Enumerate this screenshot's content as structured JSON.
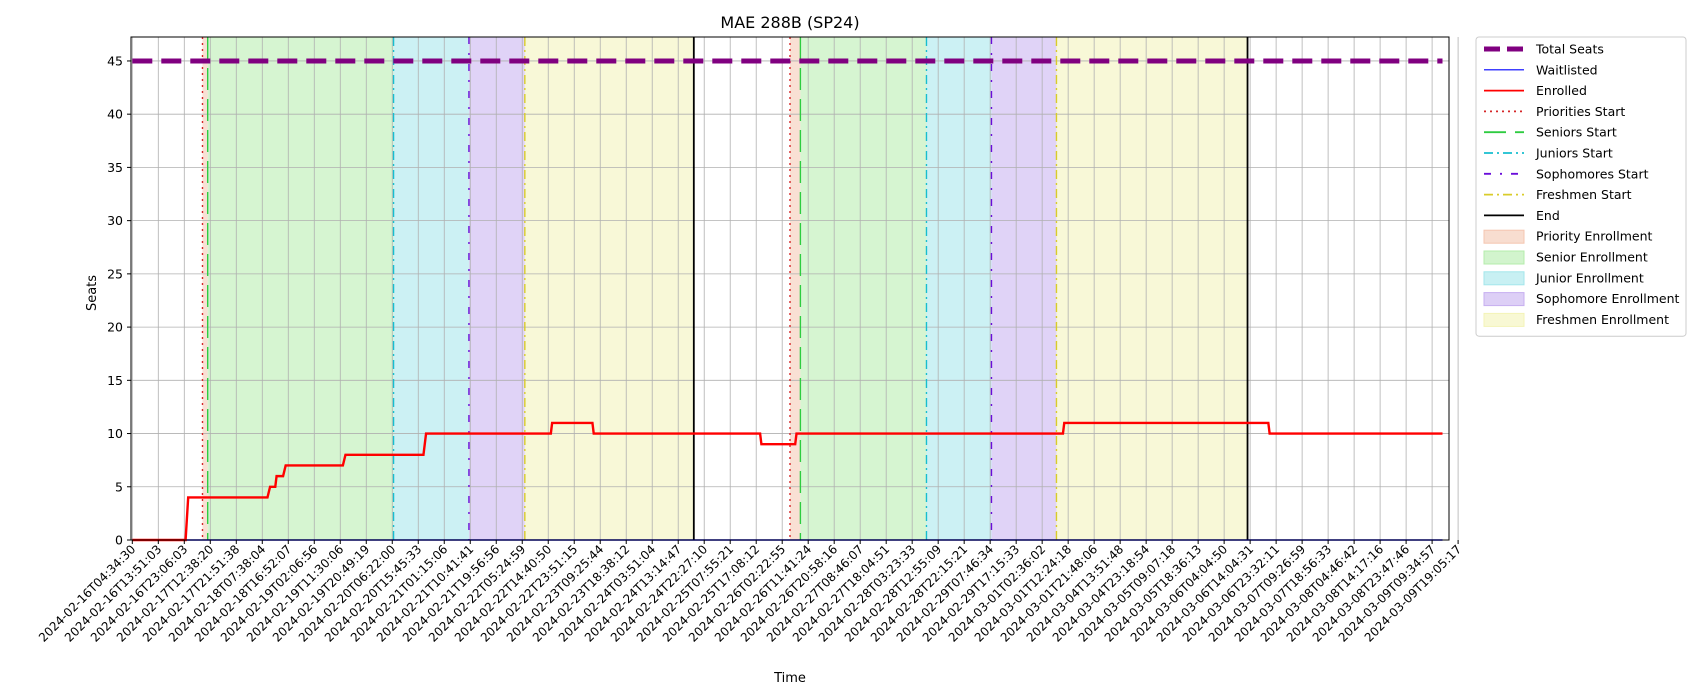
{
  "chart_data": {
    "type": "line",
    "title": "MAE 288B (SP24)",
    "xlabel": "Time",
    "ylabel": "Seats",
    "ylim": [
      0,
      47.25
    ],
    "yticks": [
      0,
      5,
      10,
      15,
      20,
      25,
      30,
      35,
      40,
      45
    ],
    "x_tick_labels": [
      "2024-02-16T04:34:30",
      "2024-02-16T13:51:03",
      "2024-02-16T23:06:03",
      "2024-02-17T12:38:20",
      "2024-02-17T21:51:38",
      "2024-02-18T07:38:04",
      "2024-02-18T16:52:07",
      "2024-02-19T02:06:56",
      "2024-02-19T11:30:06",
      "2024-02-19T20:49:19",
      "2024-02-20T06:22:00",
      "2024-02-20T15:45:33",
      "2024-02-21T01:15:06",
      "2024-02-21T10:41:41",
      "2024-02-21T19:56:56",
      "2024-02-22T05:24:59",
      "2024-02-22T14:40:50",
      "2024-02-22T23:51:15",
      "2024-02-23T09:25:44",
      "2024-02-23T18:38:12",
      "2024-02-24T03:51:04",
      "2024-02-24T13:14:47",
      "2024-02-24T22:27:10",
      "2024-02-25T07:55:21",
      "2024-02-25T17:08:12",
      "2024-02-26T02:22:55",
      "2024-02-26T11:41:24",
      "2024-02-26T20:58:16",
      "2024-02-27T08:46:07",
      "2024-02-27T18:04:51",
      "2024-02-28T03:23:33",
      "2024-02-28T12:55:09",
      "2024-02-28T22:15:21",
      "2024-02-29T07:46:34",
      "2024-02-29T17:15:33",
      "2024-03-01T02:36:02",
      "2024-03-01T12:24:18",
      "2024-03-01T21:48:06",
      "2024-03-04T13:51:48",
      "2024-03-04T23:18:54",
      "2024-03-05T09:07:18",
      "2024-03-05T18:36:13",
      "2024-03-06T04:04:50",
      "2024-03-06T14:04:31",
      "2024-03-06T23:32:11",
      "2024-03-07T09:26:59",
      "2024-03-07T18:56:33",
      "2024-03-08T04:46:42",
      "2024-03-08T14:17:16",
      "2024-03-08T23:47:46",
      "2024-03-09T09:34:57",
      "2024-03-09T19:05:17"
    ],
    "grid": true,
    "legend_position": "outside-right",
    "series": [
      {
        "name": "Total Seats",
        "color": "#800080",
        "style": "dashed",
        "points": [
          [
            0,
            45
          ],
          [
            50.4,
            45
          ]
        ]
      },
      {
        "name": "Waitlisted",
        "color": "#0000ff",
        "style": "solid",
        "points": [
          [
            0,
            0
          ],
          [
            50.4,
            0
          ]
        ]
      },
      {
        "name": "Enrolled",
        "color": "#ff0000",
        "style": "solid",
        "points": [
          [
            0,
            0
          ],
          [
            2.05,
            0
          ],
          [
            2.15,
            4
          ],
          [
            5.2,
            4
          ],
          [
            5.3,
            5
          ],
          [
            5.5,
            5
          ],
          [
            5.55,
            6
          ],
          [
            5.8,
            6
          ],
          [
            5.9,
            7
          ],
          [
            8.1,
            7
          ],
          [
            8.2,
            8
          ],
          [
            11.2,
            8
          ],
          [
            11.3,
            10
          ],
          [
            16.1,
            10
          ],
          [
            16.15,
            11
          ],
          [
            17.7,
            11
          ],
          [
            17.75,
            10
          ],
          [
            24.15,
            10
          ],
          [
            24.2,
            9
          ],
          [
            25.5,
            9
          ],
          [
            25.55,
            10
          ],
          [
            35.8,
            10
          ],
          [
            35.85,
            11
          ],
          [
            43.7,
            11
          ],
          [
            43.75,
            10
          ],
          [
            50.4,
            10
          ]
        ]
      }
    ],
    "vertical_markers": [
      {
        "name": "Priorities Start",
        "color": "#d62728",
        "style": "dotted",
        "x": [
          2.7,
          25.3
        ]
      },
      {
        "name": "Seniors Start",
        "color": "#2ecc40",
        "style": "dashed",
        "x": [
          2.9,
          25.7
        ]
      },
      {
        "name": "Juniors Start",
        "color": "#17becf",
        "style": "dashdot",
        "x": [
          10.05,
          30.55
        ]
      },
      {
        "name": "Sophomores Start",
        "color": "#6a0dda",
        "style": "dashdot-sparse",
        "x": [
          12.95,
          33.05
        ]
      },
      {
        "name": "Freshmen Start",
        "color": "#d9cc2a",
        "style": "dashdot",
        "x": [
          15.1,
          35.55
        ]
      },
      {
        "name": "End",
        "color": "#000000",
        "style": "solid",
        "x": [
          21.6,
          42.9
        ]
      }
    ],
    "shaded_regions": [
      {
        "name": "Priority Enrollment",
        "color": "#f4c6b0",
        "ranges": [
          [
            2.7,
            2.9
          ],
          [
            25.3,
            25.7
          ]
        ]
      },
      {
        "name": "Senior Enrollment",
        "color": "#b4ecab",
        "ranges": [
          [
            2.9,
            10.05
          ],
          [
            25.7,
            30.55
          ]
        ]
      },
      {
        "name": "Junior Enrollment",
        "color": "#a3e6eb",
        "ranges": [
          [
            10.05,
            12.95
          ],
          [
            30.55,
            33.05
          ]
        ]
      },
      {
        "name": "Sophomore Enrollment",
        "color": "#c7aff0",
        "ranges": [
          [
            12.95,
            15.1
          ],
          [
            33.05,
            35.55
          ]
        ]
      },
      {
        "name": "Freshmen Enrollment",
        "color": "#f3f3b7",
        "ranges": [
          [
            15.1,
            21.6
          ],
          [
            35.55,
            42.9
          ]
        ]
      }
    ],
    "legend_entries": [
      {
        "label": "Total Seats",
        "kind": "line",
        "color": "#800080",
        "style": "dashed-thick"
      },
      {
        "label": "Waitlisted",
        "kind": "line",
        "color": "#0000ff",
        "style": "solid-thin"
      },
      {
        "label": "Enrolled",
        "kind": "line",
        "color": "#ff0000",
        "style": "solid"
      },
      {
        "label": "Priorities Start",
        "kind": "line",
        "color": "#d62728",
        "style": "dotted"
      },
      {
        "label": "Seniors Start",
        "kind": "line",
        "color": "#2ecc40",
        "style": "dashed"
      },
      {
        "label": "Juniors Start",
        "kind": "line",
        "color": "#17becf",
        "style": "dashdot"
      },
      {
        "label": "Sophomores Start",
        "kind": "line",
        "color": "#6a0dda",
        "style": "dashdot-sparse"
      },
      {
        "label": "Freshmen Start",
        "kind": "line",
        "color": "#d9cc2a",
        "style": "dashdot"
      },
      {
        "label": "End",
        "kind": "line",
        "color": "#000000",
        "style": "solid"
      },
      {
        "label": "Priority Enrollment",
        "kind": "patch",
        "color": "#f4c6b0"
      },
      {
        "label": "Senior Enrollment",
        "kind": "patch",
        "color": "#b4ecab"
      },
      {
        "label": "Junior Enrollment",
        "kind": "patch",
        "color": "#a3e6eb"
      },
      {
        "label": "Sophomore Enrollment",
        "kind": "patch",
        "color": "#c7aff0"
      },
      {
        "label": "Freshmen Enrollment",
        "kind": "patch",
        "color": "#f3f3b7"
      }
    ]
  }
}
